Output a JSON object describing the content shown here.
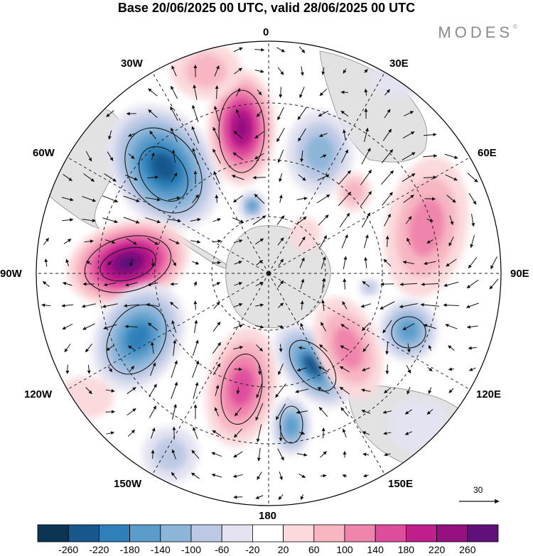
{
  "title": "Base 20/06/2025 00 UTC, valid 28/06/2025 00 UTC",
  "brand": {
    "name": "MODES",
    "mark": "©"
  },
  "longitude_labels": {
    "lon_0": "0",
    "lon_30e": "30E",
    "lon_60e": "60E",
    "lon_90e": "90E",
    "lon_120e": "120E",
    "lon_150e": "150E",
    "lon_180": "180",
    "lon_150w": "150W",
    "lon_120w": "120W",
    "lon_90w": "90W",
    "lon_60w": "60W",
    "lon_30w": "30W"
  },
  "vector_scale": {
    "value": "30"
  },
  "colorbar": {
    "colors": [
      "#0c3553",
      "#17578c",
      "#2f80ba",
      "#5b9ccb",
      "#8cb5d8",
      "#bdc9e4",
      "#e3e3f1",
      "#ffffff",
      "#fbd9dc",
      "#f7b6c2",
      "#ef84ac",
      "#de4d9c",
      "#be1f8b",
      "#951180",
      "#5f107a"
    ],
    "ticks": [
      "-260",
      "-220",
      "-180",
      "-140",
      "-100",
      "-60",
      "-20",
      "20",
      "60",
      "100",
      "140",
      "180",
      "220",
      "260"
    ]
  },
  "map_colors": {
    "land": "#e2e2e2",
    "coast": "#8c8c8c",
    "grid": "#222222",
    "arrow": "#111111",
    "contour": "#1a1a1a"
  }
}
